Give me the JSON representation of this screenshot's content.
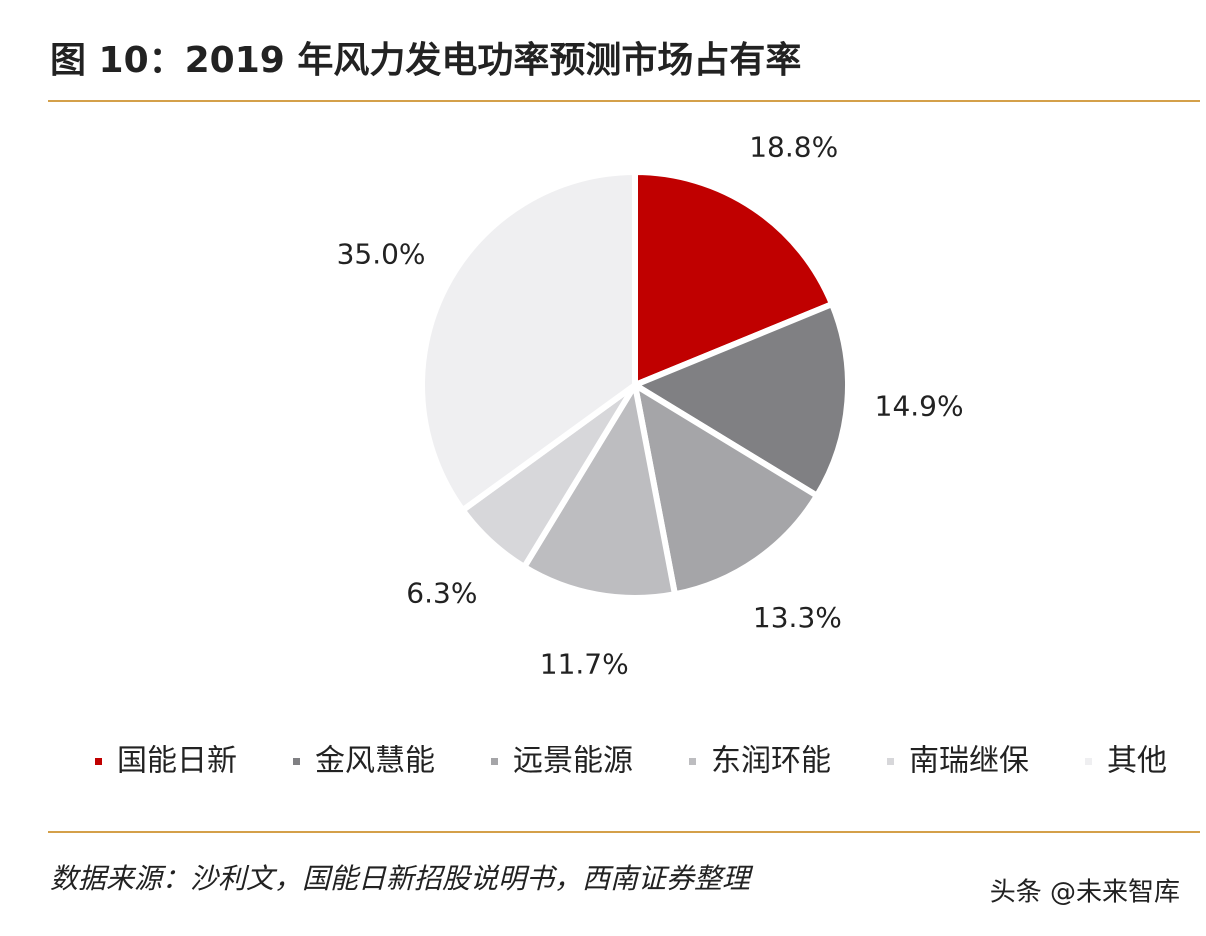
{
  "chart_data": {
    "type": "pie",
    "title": "图 10：2019 年风力发电功率预测市场占有率",
    "categories": [
      "国能日新",
      "金风慧能",
      "远景能源",
      "东润环能",
      "南瑞继保",
      "其他"
    ],
    "values": [
      18.8,
      14.9,
      13.3,
      11.7,
      6.3,
      35.0
    ],
    "value_labels": [
      "18.8%",
      "14.9%",
      "13.3%",
      "11.7%",
      "6.3%",
      "35.0%"
    ],
    "colors": [
      "#c00000",
      "#808083",
      "#a5a5a8",
      "#bdbdc0",
      "#d7d7da",
      "#efeff1"
    ],
    "source": "数据来源：沙利文，国能日新招股说明书，西南证券整理",
    "watermark": "头条 @未来智库"
  }
}
